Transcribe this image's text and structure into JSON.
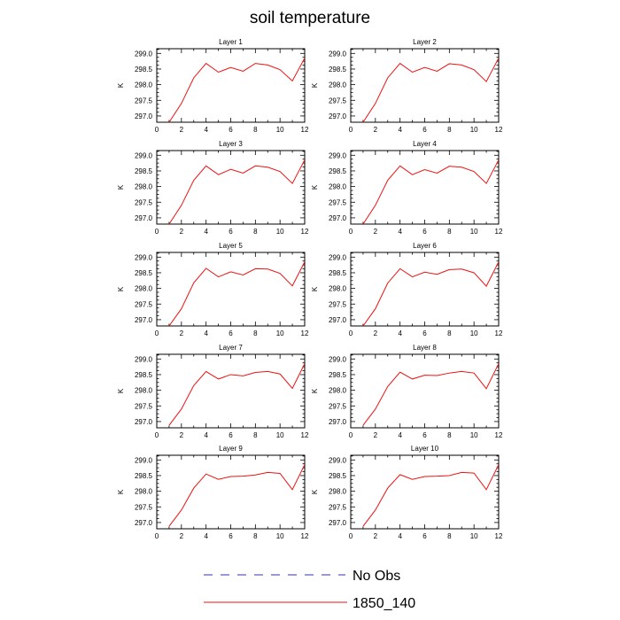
{
  "figure": {
    "title": "soil temperature",
    "legend": [
      {
        "label": "No Obs",
        "color": "#3333aa",
        "style": "dashed"
      },
      {
        "label": "1850_140",
        "color": "#ee1111",
        "style": "solid"
      }
    ]
  },
  "chart_data": [
    {
      "type": "line",
      "title": "Layer 1",
      "ylabel": "K",
      "xlim": [
        0,
        12
      ],
      "ylim": [
        296.8,
        299.15
      ],
      "xticks": [
        0,
        2,
        4,
        6,
        8,
        10,
        12
      ],
      "yticks": [
        297.0,
        297.5,
        298.0,
        298.5,
        299.0
      ],
      "series": [
        {
          "name": "1850_140",
          "color": "#ee1111",
          "x": [
            1,
            2,
            3,
            4,
            5,
            6,
            7,
            8,
            9,
            10,
            11,
            12
          ],
          "y": [
            296.8,
            297.4,
            298.22,
            298.68,
            298.4,
            298.55,
            298.43,
            298.68,
            298.63,
            298.48,
            298.12,
            298.85
          ]
        }
      ]
    },
    {
      "type": "line",
      "title": "Layer 2",
      "ylabel": "K",
      "xlim": [
        0,
        12
      ],
      "ylim": [
        296.8,
        299.15
      ],
      "xticks": [
        0,
        2,
        4,
        6,
        8,
        10,
        12
      ],
      "yticks": [
        297.0,
        297.5,
        298.0,
        298.5,
        299.0
      ],
      "series": [
        {
          "name": "1850_140",
          "color": "#ee1111",
          "x": [
            1,
            2,
            3,
            4,
            5,
            6,
            7,
            8,
            9,
            10,
            11,
            12
          ],
          "y": [
            296.8,
            297.4,
            298.22,
            298.68,
            298.4,
            298.55,
            298.43,
            298.67,
            298.63,
            298.48,
            298.1,
            298.85
          ]
        }
      ]
    },
    {
      "type": "line",
      "title": "Layer 3",
      "ylabel": "K",
      "xlim": [
        0,
        12
      ],
      "ylim": [
        296.8,
        299.15
      ],
      "xticks": [
        0,
        2,
        4,
        6,
        8,
        10,
        12
      ],
      "yticks": [
        297.0,
        297.5,
        298.0,
        298.5,
        299.0
      ],
      "series": [
        {
          "name": "1850_140",
          "color": "#ee1111",
          "x": [
            1,
            2,
            3,
            4,
            5,
            6,
            7,
            8,
            9,
            10,
            11,
            12
          ],
          "y": [
            296.8,
            297.4,
            298.2,
            298.66,
            298.38,
            298.55,
            298.43,
            298.66,
            298.62,
            298.48,
            298.1,
            298.85
          ]
        }
      ]
    },
    {
      "type": "line",
      "title": "Layer 4",
      "ylabel": "K",
      "xlim": [
        0,
        12
      ],
      "ylim": [
        296.8,
        299.15
      ],
      "xticks": [
        0,
        2,
        4,
        6,
        8,
        10,
        12
      ],
      "yticks": [
        297.0,
        297.5,
        298.0,
        298.5,
        299.0
      ],
      "series": [
        {
          "name": "1850_140",
          "color": "#ee1111",
          "x": [
            1,
            2,
            3,
            4,
            5,
            6,
            7,
            8,
            9,
            10,
            11,
            12
          ],
          "y": [
            296.8,
            297.4,
            298.2,
            298.66,
            298.38,
            298.54,
            298.43,
            298.65,
            298.62,
            298.48,
            298.1,
            298.85
          ]
        }
      ]
    },
    {
      "type": "line",
      "title": "Layer 5",
      "ylabel": "K",
      "xlim": [
        0,
        12
      ],
      "ylim": [
        296.8,
        299.15
      ],
      "xticks": [
        0,
        2,
        4,
        6,
        8,
        10,
        12
      ],
      "yticks": [
        297.0,
        297.5,
        298.0,
        298.5,
        299.0
      ],
      "series": [
        {
          "name": "1850_140",
          "color": "#ee1111",
          "x": [
            1,
            2,
            3,
            4,
            5,
            6,
            7,
            8,
            9,
            10,
            11,
            12
          ],
          "y": [
            296.8,
            297.35,
            298.18,
            298.64,
            298.37,
            298.53,
            298.43,
            298.63,
            298.62,
            298.48,
            298.08,
            298.85
          ]
        }
      ]
    },
    {
      "type": "line",
      "title": "Layer 6",
      "ylabel": "K",
      "xlim": [
        0,
        12
      ],
      "ylim": [
        296.8,
        299.15
      ],
      "xticks": [
        0,
        2,
        4,
        6,
        8,
        10,
        12
      ],
      "yticks": [
        297.0,
        297.5,
        298.0,
        298.5,
        299.0
      ],
      "series": [
        {
          "name": "1850_140",
          "color": "#ee1111",
          "x": [
            1,
            2,
            3,
            4,
            5,
            6,
            7,
            8,
            9,
            10,
            11,
            12
          ],
          "y": [
            296.8,
            297.35,
            298.17,
            298.63,
            298.37,
            298.52,
            298.45,
            298.6,
            298.62,
            298.5,
            298.07,
            298.85
          ]
        }
      ]
    },
    {
      "type": "line",
      "title": "Layer 7",
      "ylabel": "K",
      "xlim": [
        0,
        12
      ],
      "ylim": [
        296.8,
        299.15
      ],
      "xticks": [
        0,
        2,
        4,
        6,
        8,
        10,
        12
      ],
      "yticks": [
        297.0,
        297.5,
        298.0,
        298.5,
        299.0
      ],
      "series": [
        {
          "name": "1850_140",
          "color": "#ee1111",
          "x": [
            1,
            2,
            3,
            4,
            5,
            6,
            7,
            8,
            9,
            10,
            11,
            12
          ],
          "y": [
            296.88,
            297.4,
            298.15,
            298.6,
            298.36,
            298.5,
            298.46,
            298.57,
            298.6,
            298.52,
            298.06,
            298.85
          ]
        }
      ]
    },
    {
      "type": "line",
      "title": "Layer 8",
      "ylabel": "K",
      "xlim": [
        0,
        12
      ],
      "ylim": [
        296.8,
        299.15
      ],
      "xticks": [
        0,
        2,
        4,
        6,
        8,
        10,
        12
      ],
      "yticks": [
        297.0,
        297.5,
        298.0,
        298.5,
        299.0
      ],
      "series": [
        {
          "name": "1850_140",
          "color": "#ee1111",
          "x": [
            1,
            2,
            3,
            4,
            5,
            6,
            7,
            8,
            9,
            10,
            11,
            12
          ],
          "y": [
            296.88,
            297.4,
            298.12,
            298.58,
            298.36,
            298.48,
            298.47,
            298.55,
            298.6,
            298.55,
            298.05,
            298.85
          ]
        }
      ]
    },
    {
      "type": "line",
      "title": "Layer 9",
      "ylabel": "K",
      "xlim": [
        0,
        12
      ],
      "ylim": [
        296.8,
        299.15
      ],
      "xticks": [
        0,
        2,
        4,
        6,
        8,
        10,
        12
      ],
      "yticks": [
        297.0,
        297.5,
        298.0,
        298.5,
        299.0
      ],
      "series": [
        {
          "name": "1850_140",
          "color": "#ee1111",
          "x": [
            1,
            2,
            3,
            4,
            5,
            6,
            7,
            8,
            9,
            10,
            11,
            12
          ],
          "y": [
            296.88,
            297.4,
            298.1,
            298.55,
            298.38,
            298.47,
            298.48,
            298.52,
            298.6,
            298.57,
            298.05,
            298.85
          ]
        }
      ]
    },
    {
      "type": "line",
      "title": "Layer 10",
      "ylabel": "K",
      "xlim": [
        0,
        12
      ],
      "ylim": [
        296.8,
        299.15
      ],
      "xticks": [
        0,
        2,
        4,
        6,
        8,
        10,
        12
      ],
      "yticks": [
        297.0,
        297.5,
        298.0,
        298.5,
        299.0
      ],
      "series": [
        {
          "name": "1850_140",
          "color": "#ee1111",
          "x": [
            1,
            2,
            3,
            4,
            5,
            6,
            7,
            8,
            9,
            10,
            11,
            12
          ],
          "y": [
            296.88,
            297.4,
            298.1,
            298.53,
            298.38,
            298.47,
            298.48,
            298.5,
            298.6,
            298.58,
            298.05,
            298.85
          ]
        }
      ]
    }
  ]
}
